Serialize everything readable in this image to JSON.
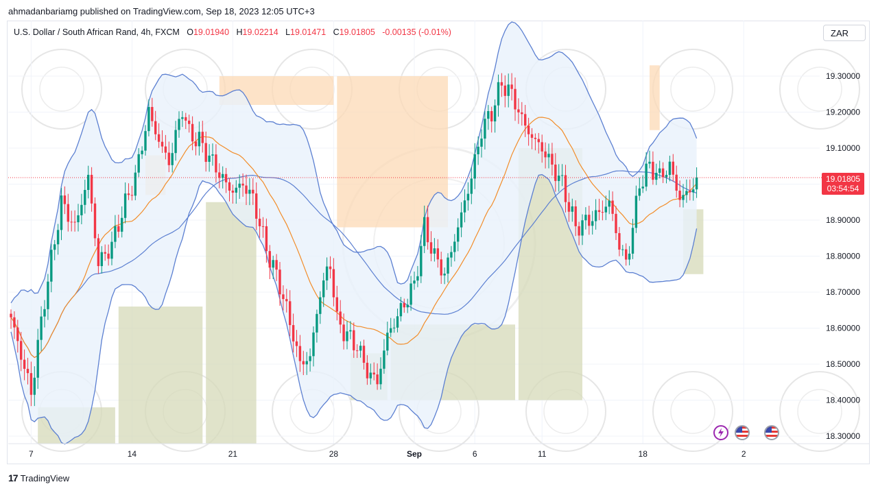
{
  "header": {
    "publisher": "ahmadanbariamg published on TradingView.com, Sep 18, 2023 12:05 UTC+3"
  },
  "legend": {
    "symbol": "U.S. Dollar / South African Rand, 4h, FXCM",
    "o_label": "O",
    "o_value": "19.01940",
    "h_label": "H",
    "h_value": "19.02214",
    "l_label": "L",
    "l_value": "19.01471",
    "c_label": "C",
    "c_value": "19.01805",
    "change": "-0.00135 (-0.01%)"
  },
  "currency_button": "ZAR",
  "price_tag": {
    "price": "19.01805",
    "countdown": "03:54:54"
  },
  "footer": {
    "brand": "TradingView"
  },
  "colors": {
    "up": "#089981",
    "down": "#f23645",
    "band": "#5b7fd1",
    "band_fill": "#e8f1fb",
    "ma": "#f28c28",
    "cloud_bull": "#d6d9b8",
    "cloud_bear": "#fcd9b6"
  },
  "events": [
    "lightning-icon",
    "us-flag-icon",
    "us-flag-icon"
  ],
  "chart_data": {
    "type": "candlestick",
    "title": "U.S. Dollar / South African Rand, 4h, FXCM",
    "ylim": [
      18.28,
      19.45
    ],
    "y_ticks": [
      "18.30000",
      "18.40000",
      "18.50000",
      "18.60000",
      "18.70000",
      "18.80000",
      "18.90000",
      "19.00000",
      "19.10000",
      "19.20000",
      "19.30000"
    ],
    "x_ticks": [
      {
        "label": "7",
        "bar": 6
      },
      {
        "label": "14",
        "bar": 36
      },
      {
        "label": "21",
        "bar": 66
      },
      {
        "label": "28",
        "bar": 96
      },
      {
        "label": "Sep",
        "bar": 120
      },
      {
        "label": "6",
        "bar": 138
      },
      {
        "label": "11",
        "bar": 158
      },
      {
        "label": "18",
        "bar": 188
      },
      {
        "label": "2",
        "bar": 218
      }
    ],
    "current_price": 19.01805,
    "bars": 205,
    "anchors": [
      [
        0,
        18.63
      ],
      [
        6,
        18.42
      ],
      [
        10,
        18.68
      ],
      [
        15,
        18.95
      ],
      [
        19,
        18.88
      ],
      [
        23,
        19.02
      ],
      [
        26,
        18.78
      ],
      [
        30,
        18.83
      ],
      [
        33,
        18.92
      ],
      [
        37,
        19.02
      ],
      [
        41,
        19.2
      ],
      [
        44,
        19.12
      ],
      [
        47,
        19.06
      ],
      [
        51,
        19.21
      ],
      [
        53,
        19.14
      ],
      [
        56,
        19.12
      ],
      [
        60,
        19.06
      ],
      [
        64,
        19.0
      ],
      [
        66,
        18.98
      ],
      [
        69,
        19.0
      ],
      [
        72,
        18.96
      ],
      [
        76,
        18.82
      ],
      [
        80,
        18.72
      ],
      [
        84,
        18.58
      ],
      [
        86,
        18.5
      ],
      [
        89,
        18.52
      ],
      [
        92,
        18.7
      ],
      [
        95,
        18.78
      ],
      [
        97,
        18.62
      ],
      [
        100,
        18.58
      ],
      [
        103,
        18.55
      ],
      [
        106,
        18.48
      ],
      [
        109,
        18.45
      ],
      [
        112,
        18.58
      ],
      [
        116,
        18.65
      ],
      [
        120,
        18.72
      ],
      [
        123,
        18.88
      ],
      [
        126,
        18.8
      ],
      [
        129,
        18.75
      ],
      [
        133,
        18.88
      ],
      [
        137,
        19.02
      ],
      [
        140,
        19.15
      ],
      [
        143,
        19.2
      ],
      [
        146,
        19.28
      ],
      [
        149,
        19.25
      ],
      [
        152,
        19.18
      ],
      [
        155,
        19.13
      ],
      [
        158,
        19.1
      ],
      [
        161,
        19.05
      ],
      [
        164,
        19.0
      ],
      [
        168,
        18.88
      ],
      [
        172,
        18.9
      ],
      [
        175,
        18.92
      ],
      [
        178,
        18.95
      ],
      [
        181,
        18.83
      ],
      [
        183,
        18.78
      ],
      [
        185,
        18.88
      ],
      [
        187,
        19.0
      ],
      [
        190,
        19.05
      ],
      [
        193,
        19.02
      ],
      [
        196,
        19.05
      ],
      [
        199,
        18.96
      ],
      [
        202,
        18.98
      ],
      [
        204,
        19.018
      ]
    ]
  }
}
